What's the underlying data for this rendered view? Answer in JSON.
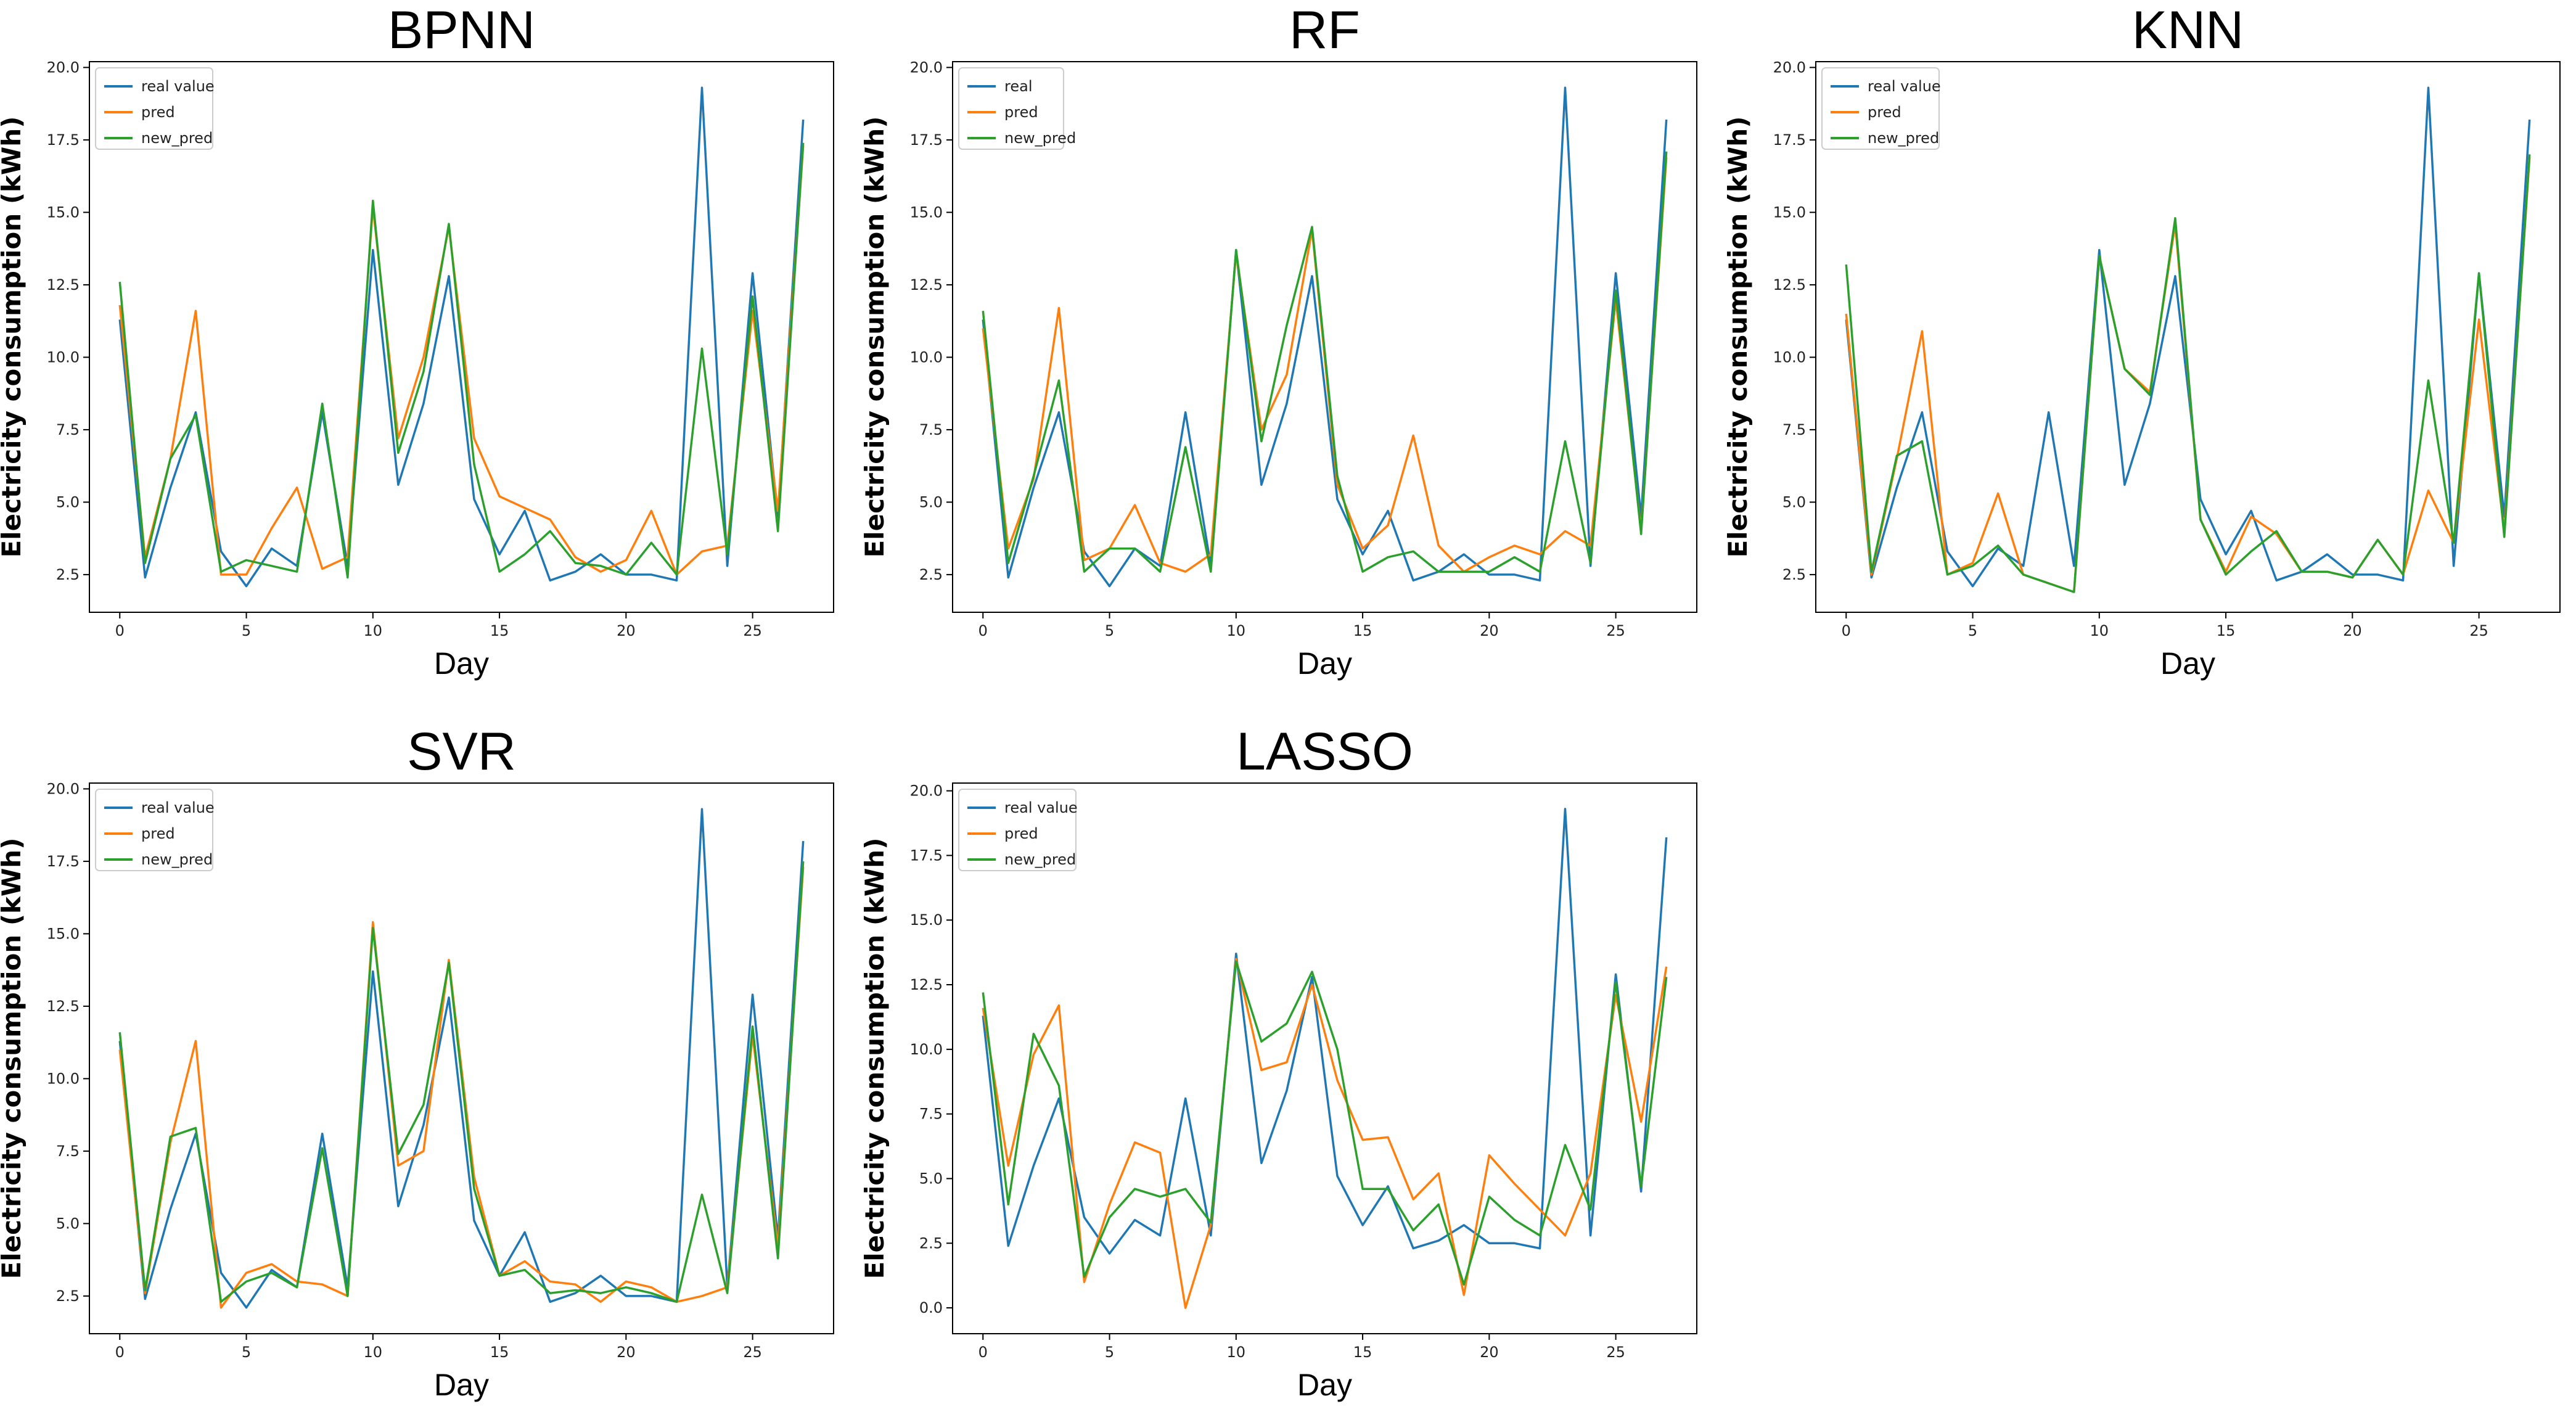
{
  "chart_data": [
    {
      "type": "line",
      "title": "BPNN",
      "xlabel": "Day",
      "ylabel": "Electricity consumption (kWh)",
      "xlim": [
        -1.2,
        28.2
      ],
      "ylim": [
        1.2,
        20.2
      ],
      "xticks": [
        0,
        5,
        10,
        15,
        20,
        25
      ],
      "yticks": [
        2.5,
        5.0,
        7.5,
        10.0,
        12.5,
        15.0,
        17.5,
        20.0
      ],
      "legend": "top-left",
      "series": [
        {
          "name": "real value",
          "color": "#1f77b4",
          "values": [
            11.3,
            2.4,
            5.5,
            8.1,
            3.3,
            2.1,
            3.4,
            2.8,
            8.1,
            2.8,
            13.7,
            5.6,
            8.4,
            12.8,
            5.1,
            3.2,
            4.7,
            2.3,
            2.6,
            3.2,
            2.5,
            2.5,
            2.3,
            19.3,
            2.8,
            12.9,
            4.5,
            18.2
          ]
        },
        {
          "name": "pred",
          "color": "#ff7f0e",
          "values": [
            11.8,
            3.1,
            6.5,
            11.6,
            2.5,
            2.5,
            4.1,
            5.5,
            2.7,
            3.1,
            15.2,
            7.2,
            10.0,
            14.5,
            7.2,
            5.2,
            4.8,
            4.4,
            3.1,
            2.6,
            3.0,
            4.7,
            2.5,
            3.3,
            3.5,
            11.6,
            4.7,
            17.3
          ]
        },
        {
          "name": "new_pred",
          "color": "#2ca02c",
          "values": [
            12.6,
            2.9,
            6.5,
            8.0,
            2.6,
            3.0,
            2.8,
            2.6,
            8.4,
            2.4,
            15.4,
            6.7,
            9.5,
            14.6,
            6.3,
            2.6,
            3.2,
            4.0,
            2.9,
            2.8,
            2.5,
            3.6,
            2.5,
            10.3,
            3.2,
            12.1,
            4.0,
            17.4
          ]
        }
      ]
    },
    {
      "type": "line",
      "title": "RF",
      "xlabel": "Day",
      "ylabel": "Electricity consumption (kWh)",
      "xlim": [
        -1.2,
        28.2
      ],
      "ylim": [
        1.2,
        20.2
      ],
      "xticks": [
        0,
        5,
        10,
        15,
        20,
        25
      ],
      "yticks": [
        2.5,
        5.0,
        7.5,
        10.0,
        12.5,
        15.0,
        17.5,
        20.0
      ],
      "legend": "top-left",
      "series": [
        {
          "name": "real",
          "color": "#1f77b4",
          "values": [
            11.3,
            2.4,
            5.5,
            8.1,
            3.3,
            2.1,
            3.4,
            2.8,
            8.1,
            2.8,
            13.7,
            5.6,
            8.4,
            12.8,
            5.1,
            3.2,
            4.7,
            2.3,
            2.6,
            3.2,
            2.5,
            2.5,
            2.3,
            19.3,
            2.8,
            12.9,
            4.5,
            18.2
          ]
        },
        {
          "name": "pred",
          "color": "#ff7f0e",
          "values": [
            11.0,
            3.4,
            5.8,
            11.7,
            3.0,
            3.4,
            4.9,
            2.9,
            2.6,
            3.2,
            13.6,
            7.5,
            9.4,
            14.4,
            5.6,
            3.4,
            4.2,
            7.3,
            3.5,
            2.6,
            3.1,
            3.5,
            3.2,
            4.0,
            3.5,
            12.0,
            4.0,
            16.9
          ]
        },
        {
          "name": "new_pred",
          "color": "#2ca02c",
          "values": [
            11.6,
            2.9,
            5.9,
            9.2,
            2.6,
            3.4,
            3.4,
            2.6,
            6.9,
            2.6,
            13.7,
            7.1,
            11.1,
            14.5,
            5.9,
            2.6,
            3.1,
            3.3,
            2.6,
            2.6,
            2.6,
            3.1,
            2.6,
            7.1,
            2.9,
            12.3,
            3.9,
            17.1
          ]
        }
      ]
    },
    {
      "type": "line",
      "title": "KNN",
      "xlabel": "Day",
      "ylabel": "Electricity consumption (kWh)",
      "xlim": [
        -1.2,
        28.2
      ],
      "ylim": [
        1.2,
        20.2
      ],
      "xticks": [
        0,
        5,
        10,
        15,
        20,
        25
      ],
      "yticks": [
        2.5,
        5.0,
        7.5,
        10.0,
        12.5,
        15.0,
        17.5,
        20.0
      ],
      "legend": "top-left",
      "series": [
        {
          "name": "real value",
          "color": "#1f77b4",
          "values": [
            11.3,
            2.4,
            5.5,
            8.1,
            3.3,
            2.1,
            3.4,
            2.8,
            8.1,
            2.8,
            13.7,
            5.6,
            8.4,
            12.8,
            5.1,
            3.2,
            4.7,
            2.3,
            2.6,
            3.2,
            2.5,
            2.5,
            2.3,
            19.3,
            2.8,
            12.9,
            4.5,
            18.2
          ]
        },
        {
          "name": "pred",
          "color": "#ff7f0e",
          "values": [
            11.5,
            2.5,
            6.5,
            10.9,
            2.5,
            2.9,
            5.3,
            2.5,
            2.2,
            1.9,
            13.5,
            9.6,
            8.8,
            14.6,
            4.4,
            2.6,
            4.5,
            3.9,
            2.6,
            2.6,
            2.4,
            3.7,
            2.5,
            5.4,
            3.6,
            11.3,
            4.0,
            16.9
          ]
        },
        {
          "name": "new_pred",
          "color": "#2ca02c",
          "values": [
            13.2,
            2.6,
            6.6,
            7.1,
            2.5,
            2.8,
            3.5,
            2.5,
            2.2,
            1.9,
            13.5,
            9.6,
            8.7,
            14.8,
            4.4,
            2.5,
            3.3,
            4.0,
            2.6,
            2.6,
            2.4,
            3.7,
            2.5,
            9.2,
            3.6,
            12.9,
            3.8,
            17.0
          ]
        }
      ]
    },
    {
      "type": "line",
      "title": "SVR",
      "xlabel": "Day",
      "ylabel": "Electricity consumption (kWh)",
      "xlim": [
        -1.2,
        28.2
      ],
      "ylim": [
        1.2,
        20.2
      ],
      "xticks": [
        0,
        5,
        10,
        15,
        20,
        25
      ],
      "yticks": [
        2.5,
        5.0,
        7.5,
        10.0,
        12.5,
        15.0,
        17.5,
        20.0
      ],
      "legend": "top-left",
      "series": [
        {
          "name": "real value",
          "color": "#1f77b4",
          "values": [
            11.3,
            2.4,
            5.5,
            8.1,
            3.3,
            2.1,
            3.4,
            2.8,
            8.1,
            2.8,
            13.7,
            5.6,
            8.4,
            12.8,
            5.1,
            3.2,
            4.7,
            2.3,
            2.6,
            3.2,
            2.5,
            2.5,
            2.3,
            19.3,
            2.8,
            12.9,
            4.5,
            18.2
          ]
        },
        {
          "name": "pred",
          "color": "#ff7f0e",
          "values": [
            11.0,
            2.6,
            7.8,
            11.3,
            2.1,
            3.3,
            3.6,
            3.0,
            2.9,
            2.5,
            15.4,
            7.0,
            7.5,
            14.1,
            6.6,
            3.2,
            3.7,
            3.0,
            2.9,
            2.3,
            3.0,
            2.8,
            2.3,
            2.5,
            2.8,
            11.5,
            4.2,
            17.3
          ]
        },
        {
          "name": "new_pred",
          "color": "#2ca02c",
          "values": [
            11.6,
            2.7,
            8.0,
            8.3,
            2.3,
            3.0,
            3.3,
            2.8,
            7.6,
            2.5,
            15.2,
            7.4,
            9.1,
            14.0,
            6.2,
            3.2,
            3.4,
            2.6,
            2.7,
            2.6,
            2.8,
            2.6,
            2.3,
            6.0,
            2.6,
            11.8,
            3.8,
            17.5
          ]
        }
      ]
    },
    {
      "type": "line",
      "title": "LASSO",
      "xlabel": "Day",
      "ylabel": "Electricity consumption (kWh)",
      "xlim": [
        -1.2,
        28.2
      ],
      "ylim": [
        -1.0,
        20.3
      ],
      "xticks": [
        0,
        5,
        10,
        15,
        20,
        25
      ],
      "yticks": [
        0.0,
        2.5,
        5.0,
        7.5,
        10.0,
        12.5,
        15.0,
        17.5,
        20.0
      ],
      "legend": "top-left",
      "series": [
        {
          "name": "real value",
          "color": "#1f77b4",
          "values": [
            11.3,
            2.4,
            5.5,
            8.1,
            3.5,
            2.1,
            3.4,
            2.8,
            8.1,
            2.8,
            13.7,
            5.6,
            8.4,
            12.8,
            5.1,
            3.2,
            4.7,
            2.3,
            2.6,
            3.2,
            2.5,
            2.5,
            2.3,
            19.3,
            2.8,
            12.9,
            4.5,
            18.2
          ]
        },
        {
          "name": "pred",
          "color": "#ff7f0e",
          "values": [
            11.6,
            5.5,
            9.8,
            11.7,
            1.0,
            4.0,
            6.4,
            6.0,
            0.0,
            3.2,
            13.5,
            9.2,
            9.5,
            12.5,
            8.8,
            6.5,
            6.6,
            4.2,
            5.2,
            0.5,
            5.9,
            4.8,
            3.8,
            2.8,
            5.2,
            12.1,
            7.2,
            13.2
          ]
        },
        {
          "name": "new_pred",
          "color": "#2ca02c",
          "values": [
            12.2,
            4.0,
            10.6,
            8.6,
            1.2,
            3.5,
            4.6,
            4.3,
            4.6,
            3.3,
            13.4,
            10.3,
            11.0,
            13.0,
            10.0,
            4.6,
            4.6,
            3.0,
            4.0,
            0.9,
            4.3,
            3.4,
            2.8,
            6.3,
            3.8,
            12.6,
            4.7,
            12.8
          ]
        }
      ]
    }
  ]
}
